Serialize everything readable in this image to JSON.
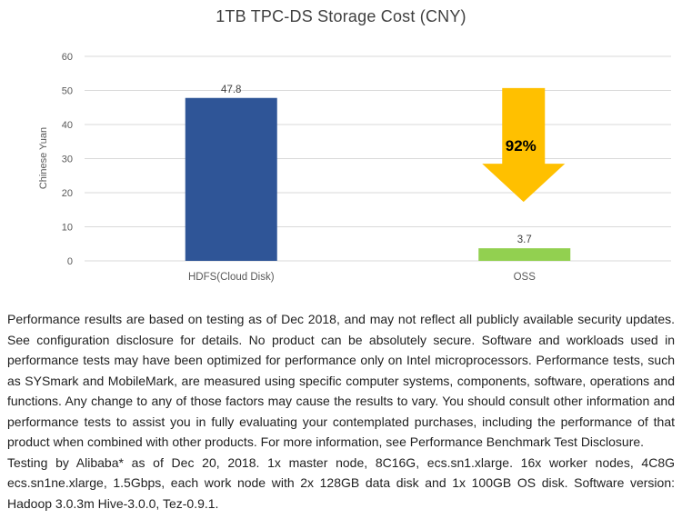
{
  "chart_data": {
    "type": "bar",
    "title": "1TB TPC-DS Storage Cost (CNY)",
    "xlabel": "",
    "ylabel": "Chinese Yuan",
    "categories": [
      "HDFS(Cloud Disk)",
      "OSS"
    ],
    "values": [
      47.8,
      3.7
    ],
    "value_labels": [
      "47.8",
      "3.7"
    ],
    "bar_colors": [
      "#2f5597",
      "#92d050"
    ],
    "ylim": [
      0,
      60
    ],
    "yticks": [
      0,
      10,
      20,
      30,
      40,
      50,
      60
    ],
    "grid": true,
    "legend": "none",
    "gridline_color": "#d9d9d9",
    "axis_text_color": "#595959",
    "value_label_color": "#404040",
    "annotation": {
      "label": "92%",
      "shape": "down-arrow",
      "color": "#ffc000",
      "label_color": "#000000",
      "target_category": "OSS",
      "top_value": 50.7,
      "head_value": 28.5,
      "tip_value": 17.3,
      "label_value": 32.3
    }
  },
  "disclaimer": {
    "paragraph1": "Performance results are based on testing as of Dec 2018, and may not reflect all publicly available security updates. See configuration disclosure for details. No product can be absolutely secure. Software and workloads used in performance tests may have been optimized for performance only on Intel microprocessors. Performance tests, such as SYSmark and MobileMark, are measured using specific computer systems, components, software, operations and functions. Any change to any of those factors may cause the results to vary. You should consult other information and performance tests to assist you in fully evaluating your contemplated purchases, including the performance of that product when combined with other products. For more information, see Performance Benchmark Test Disclosure.",
    "paragraph2": "Testing by Alibaba* as of Dec 20, 2018. 1x master node, 8C16G, ecs.sn1.xlarge. 16x worker nodes, 4C8G ecs.sn1ne.xlarge, 1.5Gbps, each work node with 2x 128GB data disk and 1x 100GB OS disk. Software version: Hadoop 3.0.3m Hive-3.0.0, Tez-0.9.1."
  }
}
